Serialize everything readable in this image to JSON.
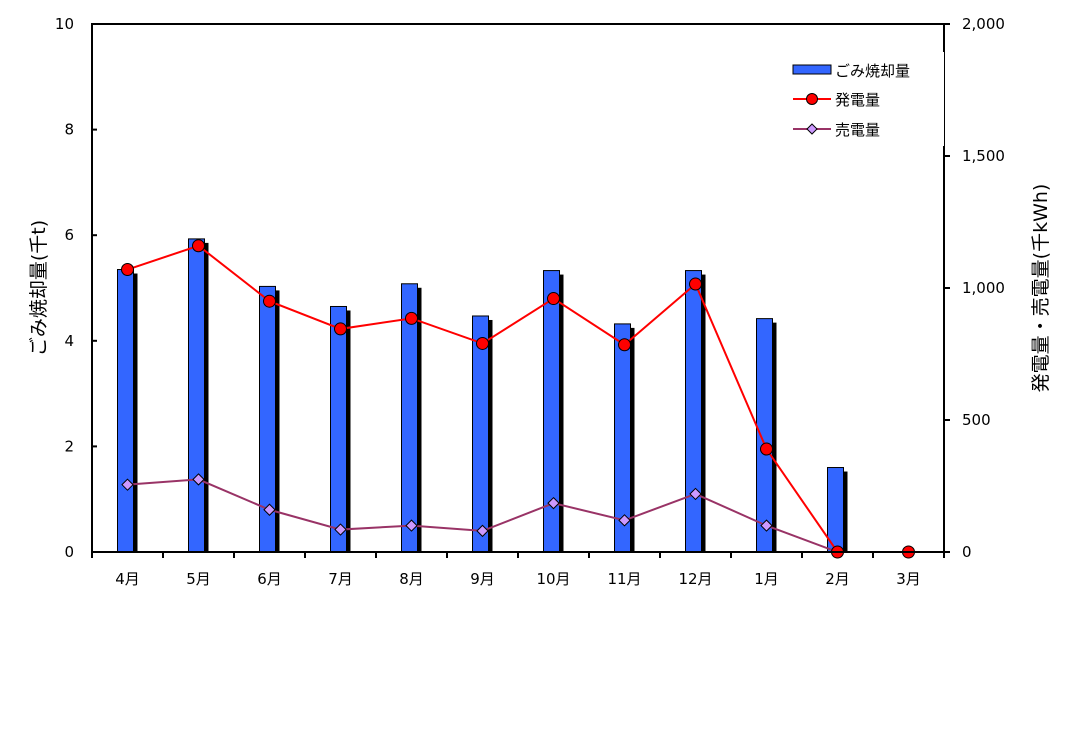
{
  "chart_data": {
    "type": "bar",
    "categories": [
      "4月",
      "5月",
      "6月",
      "7月",
      "8月",
      "9月",
      "10月",
      "11月",
      "12月",
      "1月",
      "2月",
      "3月"
    ],
    "series": [
      {
        "name": "ごみ焼却量",
        "type": "bar",
        "axis": "left",
        "color": "#3366ff",
        "values": [
          5.35,
          5.93,
          5.03,
          4.65,
          5.08,
          4.47,
          5.33,
          4.32,
          5.33,
          4.42,
          1.6,
          0
        ]
      },
      {
        "name": "発電量",
        "type": "line",
        "axis": "right",
        "color": "#ff0000",
        "marker": "circle",
        "values": [
          1070,
          1160,
          950,
          845,
          885,
          790,
          960,
          785,
          1015,
          390,
          0,
          0
        ]
      },
      {
        "name": "売電量",
        "type": "line",
        "axis": "right",
        "color": "#993366",
        "marker_fill": "#cc99ff",
        "marker": "diamond",
        "values": [
          255,
          275,
          160,
          85,
          100,
          80,
          185,
          120,
          220,
          100,
          0,
          0
        ]
      }
    ],
    "ylabel_left": "ごみ焼却量(千t)",
    "ylabel_right": "発電量・売電量(千kWh)",
    "ylim_left": [
      0,
      10
    ],
    "ylim_right": [
      0,
      2000
    ],
    "yticks_left": [
      "0",
      "2",
      "4",
      "6",
      "8",
      "10"
    ],
    "yticks_right": [
      "0",
      "500",
      "1,000",
      "1,500",
      "2,000"
    ],
    "grid": false,
    "legend_position": "top-right"
  }
}
